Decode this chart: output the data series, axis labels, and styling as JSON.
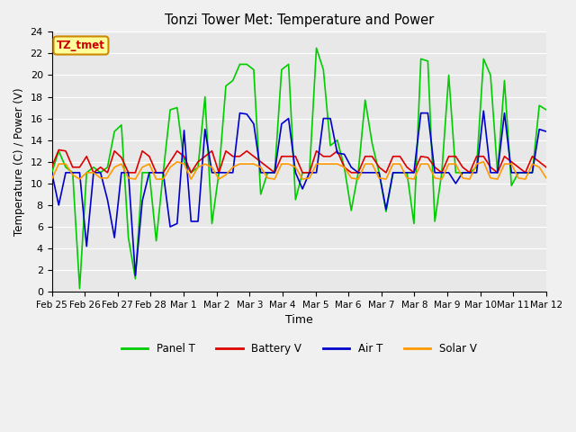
{
  "title": "Tonzi Tower Met: Temperature and Power",
  "xlabel": "Time",
  "ylabel": "Temperature (C) / Power (V)",
  "annotation": "TZ_tmet",
  "ylim": [
    0,
    24
  ],
  "yticks": [
    0,
    2,
    4,
    6,
    8,
    10,
    12,
    14,
    16,
    18,
    20,
    22,
    24
  ],
  "xtick_labels": [
    "Feb 25",
    "Feb 26",
    "Feb 27",
    "Feb 28",
    "Mar 1",
    "Mar 2",
    "Mar 3",
    "Mar 4",
    "Mar 5",
    "Mar 6",
    "Mar 7",
    "Mar 8",
    "Mar 9",
    "Mar 10",
    "Mar 11",
    "Mar 12"
  ],
  "colors": {
    "panel_t": "#00cc00",
    "battery_v": "#dd0000",
    "air_t": "#0000cc",
    "solar_v": "#ff9900"
  },
  "legend_labels": [
    "Panel T",
    "Battery V",
    "Air T",
    "Solar V"
  ],
  "bg_color": "#e8e8e8",
  "fig_bg": "#f0f0f0",
  "annotation_bg": "#ffff99",
  "annotation_border": "#cc8800",
  "panel_t_data": [
    11.0,
    13.0,
    11.5,
    11.0,
    0.3,
    11.0,
    11.5,
    11.0,
    11.5,
    14.8,
    15.4,
    5.0,
    1.2,
    11.0,
    11.0,
    4.7,
    11.0,
    16.8,
    17.0,
    12.0,
    11.0,
    11.5,
    18.0,
    6.3,
    11.0,
    19.0,
    19.5,
    21.0,
    21.0,
    20.5,
    9.0,
    11.0,
    11.0,
    20.5,
    21.0,
    8.5,
    11.0,
    11.0,
    22.5,
    20.5,
    13.5,
    14.0,
    11.5,
    7.5,
    11.0,
    17.7,
    13.7,
    11.0,
    7.4,
    11.0,
    11.0,
    11.0,
    6.3,
    21.5,
    21.3,
    6.5,
    11.0,
    20.0,
    11.0,
    11.0,
    11.0,
    11.5,
    21.5,
    20.0,
    11.0,
    19.5,
    9.8,
    11.0,
    11.0,
    11.0,
    17.2,
    16.8
  ],
  "battery_v_data": [
    11.5,
    13.1,
    13.0,
    11.5,
    11.5,
    12.5,
    11.0,
    11.5,
    11.0,
    13.0,
    12.4,
    11.0,
    11.0,
    13.0,
    12.5,
    11.0,
    11.0,
    12.0,
    13.0,
    12.5,
    11.0,
    12.0,
    12.5,
    13.0,
    11.0,
    13.0,
    12.5,
    12.5,
    13.0,
    12.5,
    12.0,
    11.5,
    11.0,
    12.5,
    12.5,
    12.5,
    11.0,
    11.0,
    13.0,
    12.5,
    12.5,
    13.0,
    11.5,
    11.0,
    11.0,
    12.5,
    12.5,
    11.5,
    11.0,
    12.5,
    12.5,
    11.5,
    11.0,
    12.5,
    12.4,
    11.5,
    11.0,
    12.5,
    12.5,
    11.5,
    11.0,
    12.5,
    12.5,
    11.5,
    11.0,
    12.5,
    12.0,
    11.5,
    11.0,
    12.5,
    12.0,
    11.5
  ],
  "air_t_data": [
    11.0,
    8.0,
    11.0,
    11.0,
    11.0,
    4.2,
    11.0,
    11.0,
    8.5,
    5.0,
    11.0,
    11.0,
    1.5,
    8.4,
    11.0,
    11.0,
    11.0,
    6.0,
    6.3,
    14.9,
    6.5,
    6.5,
    15.0,
    11.0,
    11.0,
    11.0,
    11.0,
    16.5,
    16.4,
    15.5,
    11.0,
    11.0,
    11.0,
    15.5,
    16.0,
    11.0,
    9.5,
    11.0,
    11.0,
    16.0,
    16.0,
    12.8,
    12.7,
    11.5,
    11.0,
    11.0,
    11.0,
    11.0,
    7.6,
    11.0,
    11.0,
    11.0,
    11.0,
    16.5,
    16.5,
    11.0,
    11.0,
    11.0,
    10.0,
    11.0,
    11.0,
    11.0,
    16.7,
    11.0,
    11.0,
    16.5,
    11.0,
    11.0,
    11.0,
    11.0,
    15.0,
    14.8
  ],
  "solar_v_data": [
    10.4,
    11.8,
    11.8,
    10.8,
    10.4,
    11.0,
    11.0,
    10.5,
    10.5,
    11.5,
    11.8,
    10.5,
    10.4,
    11.5,
    11.8,
    10.4,
    10.4,
    11.5,
    12.0,
    11.8,
    10.4,
    11.5,
    11.8,
    11.5,
    10.4,
    10.8,
    11.5,
    11.8,
    11.8,
    11.8,
    11.5,
    10.5,
    10.4,
    11.8,
    11.8,
    11.5,
    10.4,
    10.5,
    11.8,
    11.8,
    11.8,
    11.8,
    11.5,
    10.5,
    10.4,
    11.8,
    11.8,
    10.5,
    10.4,
    11.8,
    11.8,
    10.5,
    10.4,
    11.8,
    11.8,
    10.5,
    10.4,
    11.8,
    11.8,
    10.5,
    10.4,
    11.8,
    12.0,
    10.5,
    10.4,
    11.8,
    11.8,
    10.5,
    10.4,
    11.8,
    11.5,
    10.5
  ]
}
